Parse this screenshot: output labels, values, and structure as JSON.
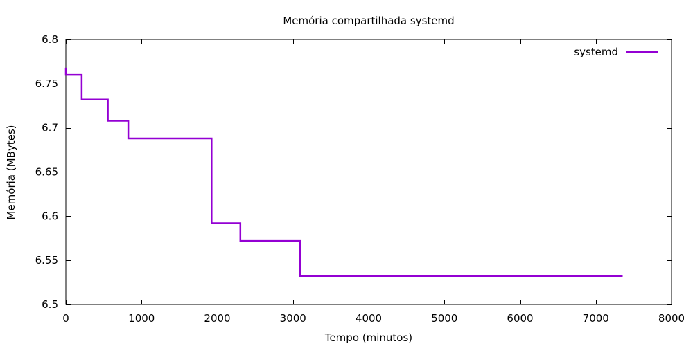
{
  "chart_data": {
    "type": "line",
    "title": "Memória compartilhada systemd",
    "xlabel": "Tempo (minutos)",
    "ylabel": "Memória (MBytes)",
    "xlim": [
      0,
      8000
    ],
    "ylim": [
      6.5,
      6.8
    ],
    "x_ticks": [
      0,
      1000,
      2000,
      3000,
      4000,
      5000,
      6000,
      7000,
      8000
    ],
    "x_tick_labels": [
      "0",
      "1000",
      "2000",
      "3000",
      "4000",
      "5000",
      "6000",
      "7000",
      "8000"
    ],
    "y_ticks": [
      6.5,
      6.55,
      6.6,
      6.65,
      6.7,
      6.75,
      6.8
    ],
    "y_tick_labels": [
      "6.5",
      "6.55",
      "6.6",
      "6.65",
      "6.7",
      "6.75",
      "6.8"
    ],
    "grid": false,
    "legend_position": "top-right",
    "series": [
      {
        "name": "systemd",
        "color": "#9400D3",
        "step": true,
        "points": [
          [
            0,
            6.768
          ],
          [
            0,
            6.76
          ],
          [
            210,
            6.76
          ],
          [
            210,
            6.732
          ],
          [
            555,
            6.732
          ],
          [
            555,
            6.708
          ],
          [
            825,
            6.708
          ],
          [
            825,
            6.688
          ],
          [
            1925,
            6.688
          ],
          [
            1925,
            6.592
          ],
          [
            2305,
            6.592
          ],
          [
            2305,
            6.572
          ],
          [
            3095,
            6.572
          ],
          [
            3095,
            6.532
          ],
          [
            7355,
            6.532
          ]
        ]
      }
    ]
  }
}
